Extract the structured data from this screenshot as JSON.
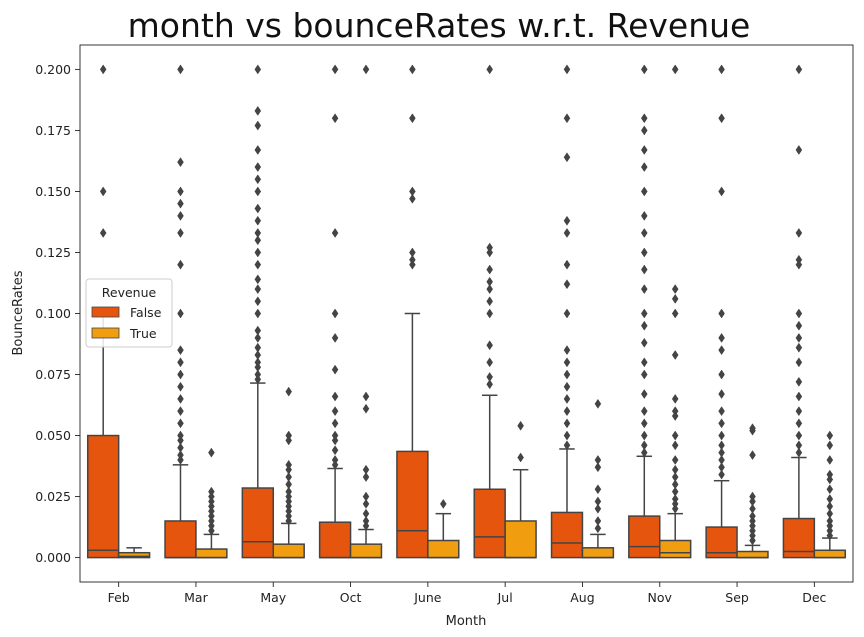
{
  "chart_data": {
    "type": "box",
    "title": "month vs bounceRates w.r.t. Revenue",
    "xlabel": "Month",
    "ylabel": "BounceRates",
    "ylim": [
      -0.01,
      0.21
    ],
    "yticks": [
      "0.000",
      "0.025",
      "0.050",
      "0.075",
      "0.100",
      "0.125",
      "0.150",
      "0.175",
      "0.200"
    ],
    "ytick_values": [
      0,
      0.025,
      0.05,
      0.075,
      0.1,
      0.125,
      0.15,
      0.175,
      0.2
    ],
    "categories": [
      "Feb",
      "Mar",
      "May",
      "Oct",
      "June",
      "Jul",
      "Aug",
      "Nov",
      "Sep",
      "Dec"
    ],
    "grid": false,
    "legend": {
      "title": "Revenue",
      "placement": "center-left"
    },
    "series": [
      {
        "name": "False",
        "color": "#e6550d",
        "boxes": [
          {
            "q1": 0,
            "median": 0.003,
            "q3": 0.05,
            "whisker_low": 0,
            "whisker_high": 0.1,
            "outliers": [
              0.133,
              0.15,
              0.2
            ]
          },
          {
            "q1": 0,
            "median": 0,
            "q3": 0.015,
            "whisker_low": 0,
            "whisker_high": 0.038,
            "outliers": [
              0.04,
              0.042,
              0.045,
              0.048,
              0.05,
              0.055,
              0.06,
              0.065,
              0.07,
              0.075,
              0.08,
              0.085,
              0.1,
              0.12,
              0.133,
              0.14,
              0.145,
              0.15,
              0.162,
              0.2
            ]
          },
          {
            "q1": 0,
            "median": 0.0065,
            "q3": 0.0285,
            "whisker_low": 0,
            "whisker_high": 0.0715,
            "outliers": [
              0.073,
              0.075,
              0.078,
              0.08,
              0.083,
              0.086,
              0.09,
              0.093,
              0.1,
              0.105,
              0.11,
              0.114,
              0.12,
              0.125,
              0.13,
              0.133,
              0.138,
              0.143,
              0.15,
              0.155,
              0.16,
              0.167,
              0.177,
              0.183,
              0.2
            ]
          },
          {
            "q1": 0,
            "median": 0,
            "q3": 0.0145,
            "whisker_low": 0,
            "whisker_high": 0.0365,
            "outliers": [
              0.038,
              0.04,
              0.044,
              0.048,
              0.05,
              0.055,
              0.06,
              0.066,
              0.077,
              0.09,
              0.1,
              0.133,
              0.18,
              0.2
            ]
          },
          {
            "q1": 0,
            "median": 0.011,
            "q3": 0.0435,
            "whisker_low": 0,
            "whisker_high": 0.1,
            "outliers": [
              0.12,
              0.122,
              0.125,
              0.147,
              0.15,
              0.18,
              0.2
            ]
          },
          {
            "q1": 0,
            "median": 0.0085,
            "q3": 0.028,
            "whisker_low": 0,
            "whisker_high": 0.0665,
            "outliers": [
              0.071,
              0.074,
              0.08,
              0.087,
              0.1,
              0.105,
              0.11,
              0.113,
              0.118,
              0.125,
              0.127,
              0.2
            ]
          },
          {
            "q1": 0,
            "median": 0.006,
            "q3": 0.0185,
            "whisker_low": 0,
            "whisker_high": 0.0445,
            "outliers": [
              0.046,
              0.05,
              0.055,
              0.06,
              0.065,
              0.07,
              0.075,
              0.08,
              0.085,
              0.1,
              0.112,
              0.12,
              0.133,
              0.138,
              0.164,
              0.18,
              0.2
            ]
          },
          {
            "q1": 0,
            "median": 0.0045,
            "q3": 0.017,
            "whisker_low": 0,
            "whisker_high": 0.0415,
            "outliers": [
              0.043,
              0.046,
              0.05,
              0.055,
              0.06,
              0.067,
              0.075,
              0.08,
              0.088,
              0.095,
              0.1,
              0.11,
              0.118,
              0.125,
              0.133,
              0.14,
              0.15,
              0.16,
              0.167,
              0.175,
              0.18,
              0.2
            ]
          },
          {
            "q1": 0,
            "median": 0.002,
            "q3": 0.0125,
            "whisker_low": 0,
            "whisker_high": 0.0315,
            "outliers": [
              0.034,
              0.037,
              0.04,
              0.043,
              0.046,
              0.05,
              0.055,
              0.06,
              0.067,
              0.075,
              0.085,
              0.09,
              0.1,
              0.15,
              0.18,
              0.2
            ]
          },
          {
            "q1": 0,
            "median": 0.0025,
            "q3": 0.016,
            "whisker_low": 0,
            "whisker_high": 0.041,
            "outliers": [
              0.043,
              0.046,
              0.05,
              0.055,
              0.06,
              0.066,
              0.072,
              0.08,
              0.086,
              0.09,
              0.095,
              0.1,
              0.12,
              0.122,
              0.133,
              0.167,
              0.2
            ]
          }
        ]
      },
      {
        "name": "True",
        "color": "#f09d0f",
        "boxes": [
          {
            "q1": 0,
            "median": 0.0005,
            "q3": 0.002,
            "whisker_low": 0,
            "whisker_high": 0.004,
            "outliers": []
          },
          {
            "q1": 0,
            "median": 0,
            "q3": 0.0035,
            "whisker_low": 0,
            "whisker_high": 0.0095,
            "outliers": [
              0.011,
              0.013,
              0.015,
              0.017,
              0.019,
              0.021,
              0.023,
              0.025,
              0.027,
              0.043
            ]
          },
          {
            "q1": 0,
            "median": 0,
            "q3": 0.0055,
            "whisker_low": 0,
            "whisker_high": 0.014,
            "outliers": [
              0.015,
              0.017,
              0.019,
              0.021,
              0.023,
              0.025,
              0.027,
              0.03,
              0.033,
              0.036,
              0.038,
              0.048,
              0.05,
              0.068
            ]
          },
          {
            "q1": 0,
            "median": 0,
            "q3": 0.0055,
            "whisker_low": 0,
            "whisker_high": 0.0115,
            "outliers": [
              0.013,
              0.015,
              0.018,
              0.022,
              0.025,
              0.033,
              0.036,
              0.061,
              0.066,
              0.2
            ]
          },
          {
            "q1": 0,
            "median": 0,
            "q3": 0.007,
            "whisker_low": 0,
            "whisker_high": 0.018,
            "outliers": [
              0.022
            ]
          },
          {
            "q1": 0,
            "median": 0,
            "q3": 0.015,
            "whisker_low": 0,
            "whisker_high": 0.036,
            "outliers": [
              0.041,
              0.054
            ]
          },
          {
            "q1": 0,
            "median": 0,
            "q3": 0.004,
            "whisker_low": 0,
            "whisker_high": 0.0095,
            "outliers": [
              0.012,
              0.015,
              0.02,
              0.023,
              0.028,
              0.037,
              0.04,
              0.063
            ]
          },
          {
            "q1": 0,
            "median": 0.002,
            "q3": 0.007,
            "whisker_low": 0,
            "whisker_high": 0.018,
            "outliers": [
              0.02,
              0.022,
              0.024,
              0.027,
              0.03,
              0.033,
              0.036,
              0.04,
              0.046,
              0.05,
              0.058,
              0.06,
              0.065,
              0.083,
              0.1,
              0.106,
              0.11,
              0.2
            ]
          },
          {
            "q1": 0,
            "median": 0,
            "q3": 0.0025,
            "whisker_low": 0,
            "whisker_high": 0.005,
            "outliers": [
              0.007,
              0.009,
              0.011,
              0.013,
              0.015,
              0.017,
              0.02,
              0.023,
              0.025,
              0.042,
              0.052,
              0.053
            ]
          },
          {
            "q1": 0,
            "median": 0,
            "q3": 0.003,
            "whisker_low": 0,
            "whisker_high": 0.008,
            "outliers": [
              0.009,
              0.011,
              0.013,
              0.015,
              0.018,
              0.021,
              0.024,
              0.028,
              0.032,
              0.034,
              0.04,
              0.046,
              0.05
            ]
          }
        ]
      }
    ]
  }
}
